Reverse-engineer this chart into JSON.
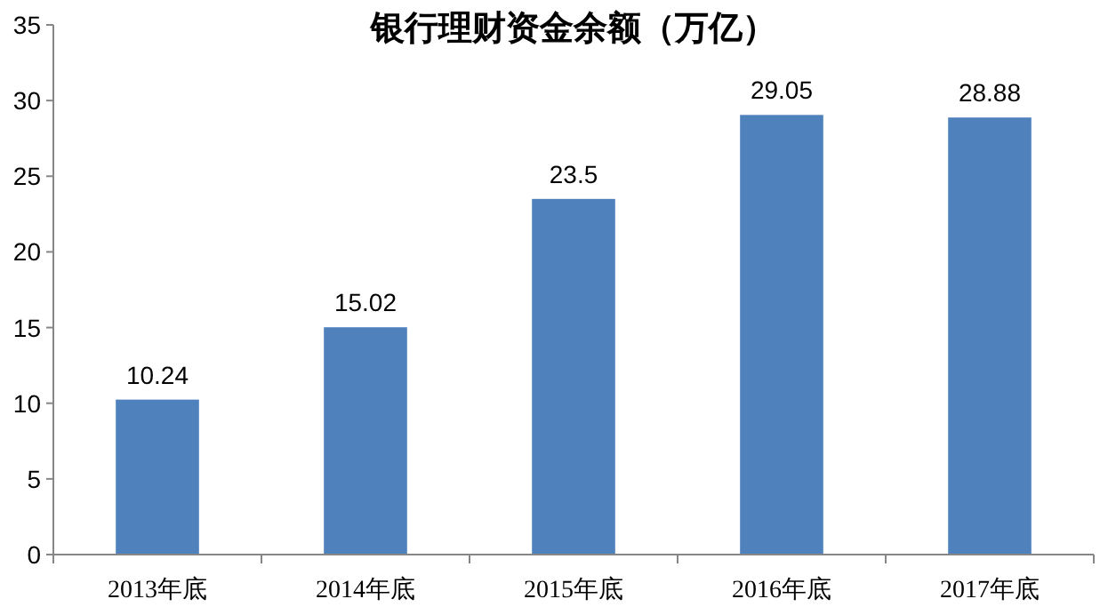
{
  "chart_data": {
    "type": "bar",
    "title": "银行理财资金余额（万亿）",
    "categories": [
      "2013年底",
      "2014年底",
      "2015年底",
      "2016年底",
      "2017年底"
    ],
    "values": [
      10.24,
      15.02,
      23.5,
      29.05,
      28.88
    ],
    "color": "#4f81bd",
    "ylim": [
      0,
      35
    ],
    "yticks": [
      0,
      5,
      10,
      15,
      20,
      25,
      30,
      35
    ],
    "grid": false,
    "data_labels": true
  }
}
